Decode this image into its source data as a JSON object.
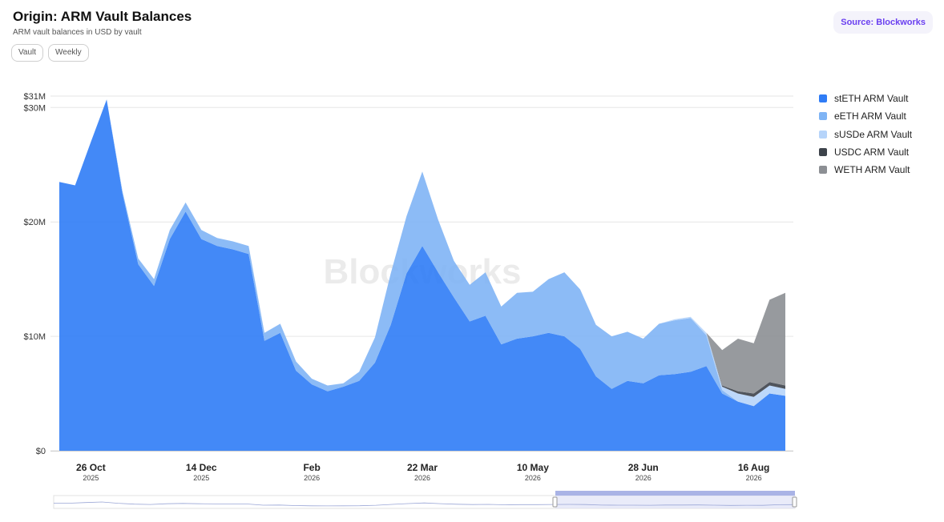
{
  "header": {
    "title": "Origin: ARM Vault Balances",
    "subtitle": "ARM vault balances in USD by vault",
    "chips": [
      "Vault",
      "Weekly"
    ],
    "source_label": "Source: Blockworks"
  },
  "watermark": "Blockworks",
  "chart_data": {
    "type": "area",
    "stacked": true,
    "title": "Origin: ARM Vault Balances",
    "subtitle": "ARM vault balances in USD by vault",
    "x": [
      "2025-10-12",
      "2025-10-19",
      "2025-10-26",
      "2025-11-02",
      "2025-11-09",
      "2025-11-16",
      "2025-11-23",
      "2025-11-30",
      "2025-12-07",
      "2025-12-14",
      "2025-12-21",
      "2025-12-28",
      "2026-01-04",
      "2026-01-11",
      "2026-01-18",
      "2026-01-25",
      "2026-02-01",
      "2026-02-08",
      "2026-02-15",
      "2026-02-22",
      "2026-03-01",
      "2026-03-08",
      "2026-03-15",
      "2026-03-22",
      "2026-03-29",
      "2026-04-05",
      "2026-04-12",
      "2026-04-19",
      "2026-04-26",
      "2026-05-03",
      "2026-05-10",
      "2026-05-17",
      "2026-05-24",
      "2026-05-31",
      "2026-06-07",
      "2026-06-14",
      "2026-06-21",
      "2026-06-28",
      "2026-07-05",
      "2026-07-12",
      "2026-07-19",
      "2026-07-26",
      "2026-08-02",
      "2026-08-09",
      "2026-08-16",
      "2026-08-23",
      "2026-08-30"
    ],
    "x_ticks": [
      {
        "label": "26 Oct",
        "year": "2025",
        "date": "2025-10-26"
      },
      {
        "label": "14 Dec",
        "year": "2025",
        "date": "2025-12-14"
      },
      {
        "label": "Feb",
        "year": "2026",
        "date": "2026-02-01"
      },
      {
        "label": "22 Mar",
        "year": "2026",
        "date": "2026-03-22"
      },
      {
        "label": "10 May",
        "year": "2026",
        "date": "2026-05-10"
      },
      {
        "label": "28 Jun",
        "year": "2026",
        "date": "2026-06-28"
      },
      {
        "label": "16 Aug",
        "year": "2026",
        "date": "2026-08-16"
      }
    ],
    "y_ticks": [
      {
        "label": "$0",
        "value": 0
      },
      {
        "label": "$10M",
        "value": 10
      },
      {
        "label": "$20M",
        "value": 20
      },
      {
        "label": "$30M",
        "value": 30
      },
      {
        "label": "$31M",
        "value": 31
      }
    ],
    "ylim": [
      0,
      31
    ],
    "y_unit": "USD millions",
    "grid": true,
    "legend_position": "right",
    "series": [
      {
        "name": "stETH ARM Vault",
        "color": "#2f7cf6",
        "values": [
          23.5,
          23.2,
          27.0,
          30.7,
          22.5,
          16.3,
          14.4,
          18.5,
          20.9,
          18.5,
          17.9,
          17.6,
          17.2,
          9.6,
          10.3,
          7.0,
          5.8,
          5.2,
          5.6,
          6.1,
          7.7,
          11.0,
          15.5,
          17.9,
          15.6,
          13.4,
          11.3,
          11.8,
          9.3,
          9.8,
          10.0,
          10.3,
          10.0,
          8.9,
          6.5,
          5.4,
          6.1,
          5.9,
          6.6,
          6.7,
          6.9,
          7.4,
          5.0,
          4.3,
          3.9,
          5.0,
          4.8
        ]
      },
      {
        "name": "eETH ARM Vault",
        "color": "#7fb4f5",
        "values": [
          0,
          0,
          0,
          0,
          0.2,
          0.5,
          0.6,
          0.8,
          0.8,
          0.8,
          0.7,
          0.7,
          0.7,
          0.7,
          0.8,
          0.8,
          0.5,
          0.5,
          0.3,
          0.8,
          2.2,
          4.5,
          5.0,
          6.5,
          4.6,
          3.2,
          3.2,
          3.8,
          3.3,
          4.0,
          3.9,
          4.7,
          5.6,
          5.2,
          4.5,
          4.6,
          4.3,
          3.9,
          4.5,
          4.7,
          4.7,
          2.7,
          0.3,
          0,
          0,
          0,
          0
        ]
      },
      {
        "name": "sUSDe ARM Vault",
        "color": "#b6d4fa",
        "values": [
          0,
          0,
          0,
          0,
          0,
          0,
          0,
          0,
          0,
          0,
          0,
          0,
          0,
          0,
          0,
          0,
          0,
          0,
          0,
          0,
          0,
          0,
          0,
          0,
          0,
          0,
          0,
          0,
          0,
          0,
          0,
          0,
          0,
          0,
          0,
          0,
          0,
          0,
          0,
          0.1,
          0.1,
          0.2,
          0.3,
          0.7,
          0.8,
          0.7,
          0.6
        ]
      },
      {
        "name": "USDC ARM Vault",
        "color": "#3d434b",
        "values": [
          0,
          0,
          0,
          0,
          0,
          0,
          0,
          0,
          0,
          0,
          0,
          0,
          0,
          0,
          0,
          0,
          0,
          0,
          0,
          0,
          0,
          0,
          0,
          0,
          0,
          0,
          0,
          0,
          0,
          0,
          0,
          0,
          0,
          0,
          0,
          0,
          0,
          0,
          0,
          0,
          0,
          0,
          0.1,
          0.2,
          0.3,
          0.3,
          0.3
        ]
      },
      {
        "name": "WETH ARM Vault",
        "color": "#8c8f94",
        "values": [
          0,
          0,
          0,
          0,
          0,
          0,
          0,
          0,
          0,
          0,
          0,
          0,
          0,
          0,
          0,
          0,
          0,
          0,
          0,
          0,
          0,
          0,
          0,
          0,
          0,
          0,
          0,
          0,
          0,
          0,
          0,
          0,
          0,
          0,
          0,
          0,
          0,
          0,
          0,
          0,
          0,
          0,
          3.1,
          4.6,
          4.4,
          7.2,
          8.1
        ]
      }
    ]
  }
}
